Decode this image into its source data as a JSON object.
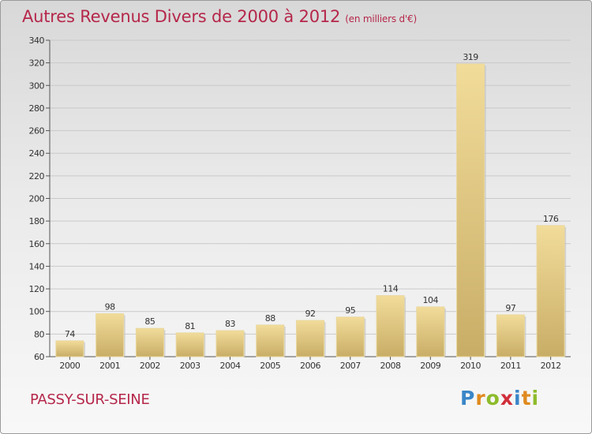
{
  "title": "Autres Revenus Divers de 2000 à 2012",
  "subtitle": "(en milliers d'€)",
  "location": "PASSY-SUR-SEINE",
  "logo": {
    "letters": [
      "P",
      "r",
      "o",
      "x",
      "i",
      "t",
      "i"
    ],
    "colors": [
      "#3a86c8",
      "#e08a1e",
      "#8dbb2b",
      "#d02f3a",
      "#3a86c8",
      "#e08a1e",
      "#8dbb2b"
    ]
  },
  "colors": {
    "title": "#b5274a",
    "bar_light": "#f2dc9a",
    "bar_dark": "#c8ad66",
    "grid": "#c9c9c9",
    "axis_text": "#333333"
  },
  "chart_data": {
    "type": "bar",
    "categories": [
      "2000",
      "2001",
      "2002",
      "2003",
      "2004",
      "2005",
      "2006",
      "2007",
      "2008",
      "2009",
      "2010",
      "2011",
      "2012"
    ],
    "values": [
      74,
      98,
      85,
      81,
      83,
      88,
      92,
      95,
      114,
      104,
      319,
      97,
      176
    ],
    "ylim": [
      60,
      340
    ],
    "yticks": [
      60,
      80,
      100,
      120,
      140,
      160,
      180,
      200,
      220,
      240,
      260,
      280,
      300,
      320,
      340
    ],
    "grid": true,
    "legend": "none"
  }
}
